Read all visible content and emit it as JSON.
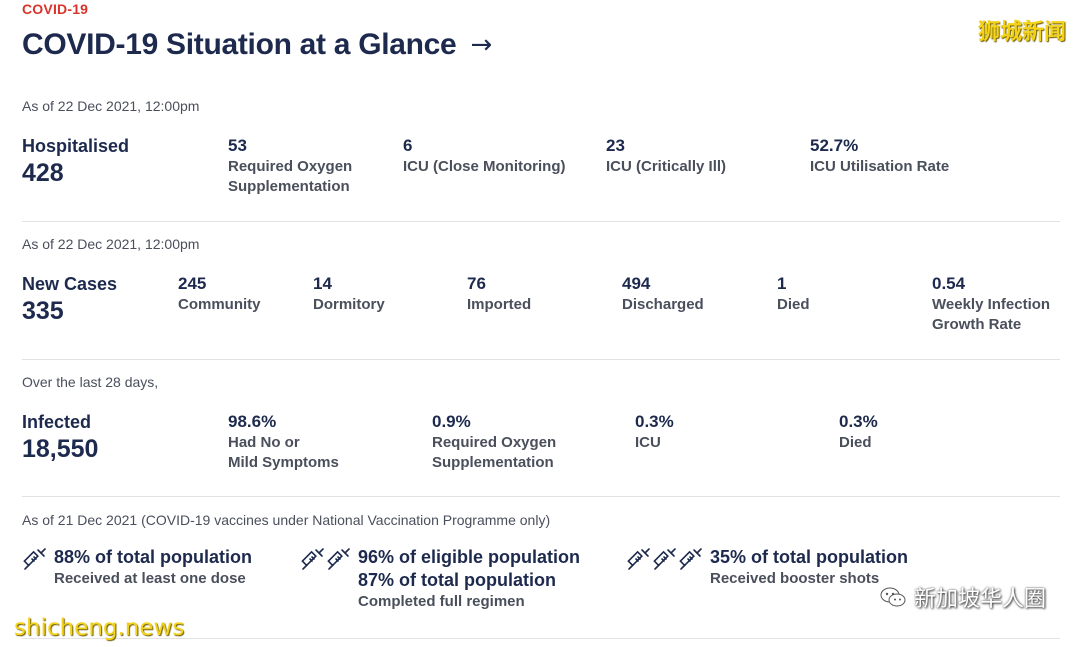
{
  "kicker": "COVID-19",
  "title": "COVID-19 Situation at a Glance",
  "arrow": "→",
  "hospital": {
    "asof": "As of 22 Dec 2021, 12:00pm",
    "label": "Hospitalised",
    "value": "428",
    "stats": [
      {
        "value": "53",
        "label_lines": [
          "Required Oxygen",
          "Supplementation"
        ]
      },
      {
        "value": "6",
        "label_lines": [
          "ICU (Close Monitoring)"
        ]
      },
      {
        "value": "23",
        "label_lines": [
          "ICU (Critically Ill)"
        ]
      },
      {
        "value": "52.7%",
        "label_lines": [
          "ICU Utilisation Rate"
        ]
      }
    ]
  },
  "cases": {
    "asof": "As of 22 Dec 2021, 12:00pm",
    "label": "New Cases",
    "value": "335",
    "stats": [
      {
        "value": "245",
        "label_lines": [
          "Community"
        ]
      },
      {
        "value": "14",
        "label_lines": [
          "Dormitory"
        ]
      },
      {
        "value": "76",
        "label_lines": [
          "Imported"
        ]
      },
      {
        "value": "494",
        "label_lines": [
          "Discharged"
        ]
      },
      {
        "value": "1",
        "label_lines": [
          "Died"
        ]
      },
      {
        "value": "0.54",
        "label_lines": [
          "Weekly Infection",
          "Growth Rate"
        ]
      }
    ]
  },
  "infected": {
    "asof": "Over the last 28 days,",
    "label": "Infected",
    "value": "18,550",
    "stats": [
      {
        "value": "98.6%",
        "label_lines": [
          "Had No or",
          "Mild Symptoms"
        ]
      },
      {
        "value": "0.9%",
        "label_lines": [
          "Required Oxygen",
          "Supplementation"
        ]
      },
      {
        "value": "0.3%",
        "label_lines": [
          "ICU"
        ]
      },
      {
        "value": "0.3%",
        "label_lines": [
          "Died"
        ]
      }
    ]
  },
  "vaccination": {
    "asof": "As of 21 Dec 2021 (COVID-19 vaccines under National Vaccination Programme only)",
    "items": [
      {
        "icon": "syringe-icon",
        "icon_count": 1,
        "main_lines": [
          "88% of total population"
        ],
        "sub": "Received at least one dose"
      },
      {
        "icon": "syringe-icon",
        "icon_count": 2,
        "main_lines": [
          "96% of eligible population",
          "87% of total population"
        ],
        "sub": "Completed full regimen"
      },
      {
        "icon": "syringe-icon",
        "icon_count": 3,
        "main_lines": [
          "35% of total population"
        ],
        "sub": "Received booster shots"
      }
    ]
  },
  "watermarks": {
    "top_right": "狮城新闻",
    "bottom_left": "shicheng.news",
    "bottom_right": "新加坡华人圈"
  },
  "colors": {
    "accent": "#d9342b",
    "navy": "#1d2a4e",
    "muted": "#4a4f5c"
  }
}
